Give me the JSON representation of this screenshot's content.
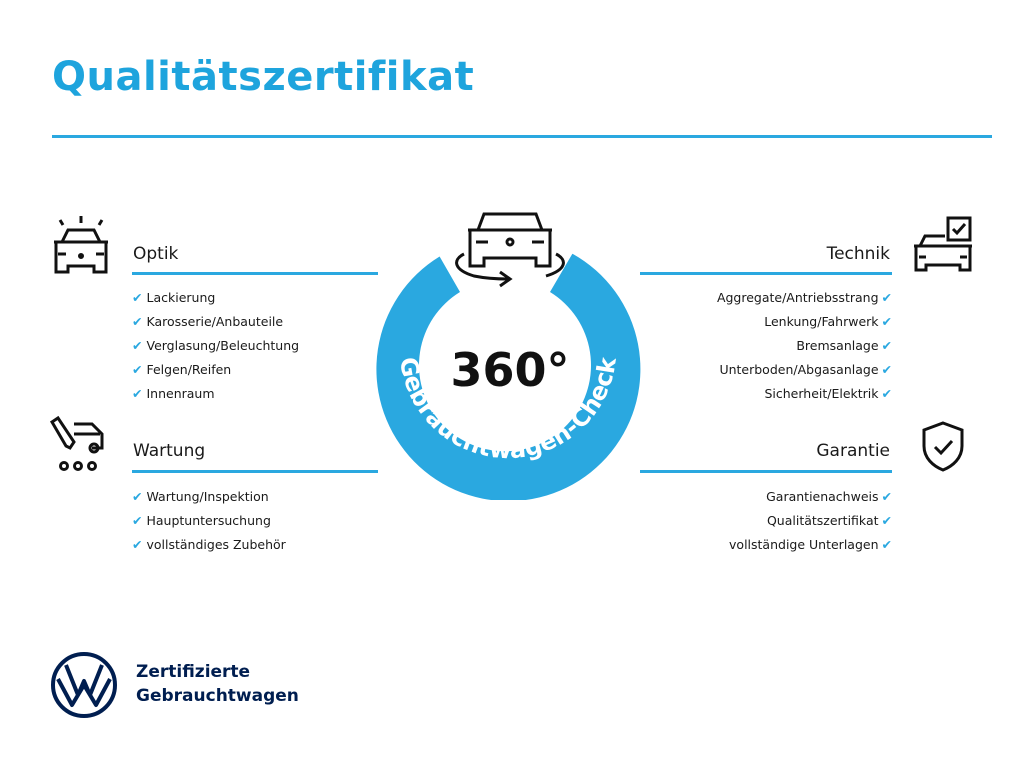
{
  "title": "Qualitätszertifikat",
  "colors": {
    "accent": "#2aa8e0",
    "brand": "#001e50"
  },
  "center": {
    "degrees": "360°",
    "ring_label": "Gebrauchtwagen-Check",
    "icon": "car-rotate-icon"
  },
  "sections": {
    "optik": {
      "heading": "Optik",
      "icon": "car-lights-icon",
      "items": [
        "Lackierung",
        "Karosserie/Anbauteile",
        "Verglasung/Beleuchtung",
        "Felgen/Reifen",
        "Innenraum"
      ]
    },
    "wartung": {
      "heading": "Wartung",
      "icon": "car-tools-icon",
      "items": [
        "Wartung/Inspektion",
        "Hauptuntersuchung",
        "vollständiges Zubehör"
      ]
    },
    "technik": {
      "heading": "Technik",
      "icon": "car-checklist-icon",
      "items": [
        "Aggregate/Antriebsstrang",
        "Lenkung/Fahrwerk",
        "Bremsanlage",
        "Unterboden/Abgasanlage",
        "Sicherheit/Elektrik"
      ]
    },
    "garantie": {
      "heading": "Garantie",
      "icon": "shield-check-icon",
      "items": [
        "Garantienachweis",
        "Qualitätszertifikat",
        "vollständige Unterlagen"
      ]
    }
  },
  "footer": {
    "line1": "Zertifizierte",
    "line2": "Gebrauchtwagen",
    "logo": "vw-logo"
  }
}
